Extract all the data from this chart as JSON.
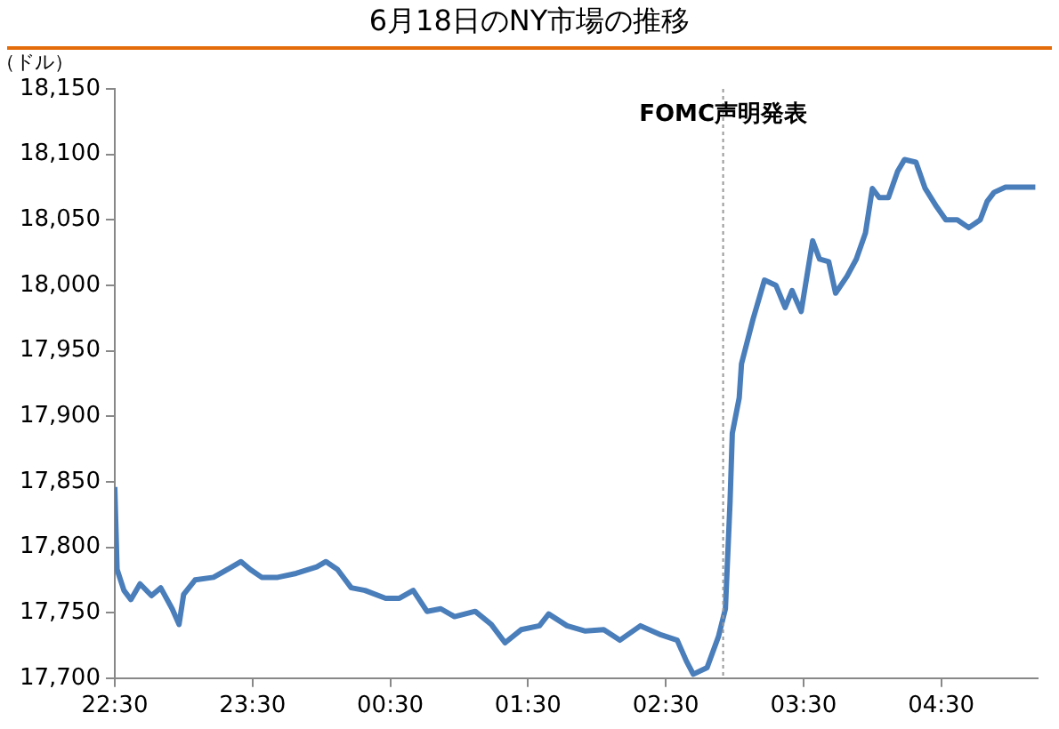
{
  "chart_data": {
    "type": "line",
    "title": "6月18日のNY市場の推移",
    "ylabel": "（ドル）",
    "x": [
      "--06-17T22:30",
      "--06-17T22:31",
      "--06-17T22:34",
      "--06-17T22:37",
      "--06-17T22:41",
      "--06-17T22:46",
      "--06-17T22:50",
      "--06-17T22:55",
      "--06-17T22:58",
      "--06-17T23:00",
      "--06-17T23:05",
      "--06-17T23:13",
      "--06-17T23:19",
      "--06-17T23:25",
      "--06-17T23:29",
      "--06-17T23:34",
      "--06-17T23:41",
      "--06-17T23:49",
      "--06-17T23:58",
      "--06-18T00:02",
      "--06-18T00:07",
      "--06-18T00:13",
      "--06-18T00:19",
      "--06-18T00:28",
      "--06-18T00:34",
      "--06-18T00:40",
      "--06-18T00:46",
      "--06-18T00:52",
      "--06-18T00:58",
      "--06-18T01:07",
      "--06-18T01:14",
      "--06-18T01:20",
      "--06-18T01:27",
      "--06-18T01:35",
      "--06-18T01:39",
      "--06-18T01:47",
      "--06-18T01:55",
      "--06-18T02:03",
      "--06-18T02:10",
      "--06-18T02:19",
      "--06-18T02:28",
      "--06-18T02:35",
      "--06-18T02:39",
      "--06-18T02:42",
      "--06-18T02:48",
      "--06-18T02:53",
      "--06-18T02:56",
      "--06-18T02:58",
      "--06-18T02:59",
      "--06-18T03:02",
      "--06-18T03:03",
      "--06-18T03:08",
      "--06-18T03:13",
      "--06-18T03:18",
      "--06-18T03:22",
      "--06-18T03:25",
      "--06-18T03:29",
      "--06-18T03:34",
      "--06-18T03:37",
      "--06-18T03:41",
      "--06-18T03:44",
      "--06-18T03:49",
      "--06-18T03:53",
      "--06-18T03:57",
      "--06-18T04:00",
      "--06-18T04:03",
      "--06-18T04:07",
      "--06-18T04:11",
      "--06-18T04:14",
      "--06-18T04:19",
      "--06-18T04:23",
      "--06-18T04:28",
      "--06-18T04:32",
      "--06-18T04:37",
      "--06-18T04:42",
      "--06-18T04:47",
      "--06-18T04:50",
      "--06-18T04:53",
      "--06-18T04:58",
      "--06-18T05:11"
    ],
    "series": [
      {
        "color": "#4a7ebb",
        "values": [
          17846,
          17783,
          17767,
          17760,
          17772,
          17763,
          17769,
          17753,
          17741,
          17764,
          17775,
          17777,
          17783,
          17789,
          17783,
          17777,
          17777,
          17780,
          17785,
          17789,
          17783,
          17769,
          17767,
          17761,
          17761,
          17767,
          17751,
          17753,
          17747,
          17751,
          17741,
          17727,
          17737,
          17740,
          17749,
          17740,
          17736,
          17737,
          17729,
          17740,
          17733,
          17729,
          17713,
          17703,
          17708,
          17732,
          17753,
          17834,
          17887,
          17914,
          17940,
          17974,
          18004,
          18000,
          17983,
          17996,
          17980,
          18034,
          18020,
          18018,
          17994,
          18007,
          18020,
          18040,
          18074,
          18067,
          18067,
          18087,
          18096,
          18094,
          18074,
          18060,
          18050,
          18050,
          18044,
          18050,
          18064,
          18071,
          18075,
          18075
        ]
      }
    ],
    "xlim": [
      "--06-17T22:30",
      "--06-18T05:12"
    ],
    "xticks": [
      {
        "value": "--06-17T22:30",
        "label": "22:30"
      },
      {
        "value": "--06-17T23:30",
        "label": "23:30"
      },
      {
        "value": "--06-18T00:30",
        "label": "00:30"
      },
      {
        "value": "--06-18T01:30",
        "label": "01:30"
      },
      {
        "value": "--06-18T02:30",
        "label": "02:30"
      },
      {
        "value": "--06-18T03:30",
        "label": "03:30"
      },
      {
        "value": "--06-18T04:30",
        "label": "04:30"
      }
    ],
    "ylim": [
      17700,
      18150
    ],
    "yticks": [
      {
        "value": 17700,
        "label": "17,700"
      },
      {
        "value": 17750,
        "label": "17,750"
      },
      {
        "value": 17800,
        "label": "17,800"
      },
      {
        "value": 17850,
        "label": "17,850"
      },
      {
        "value": 17900,
        "label": "17,900"
      },
      {
        "value": 17950,
        "label": "17,950"
      },
      {
        "value": 18000,
        "label": "18,000"
      },
      {
        "value": 18050,
        "label": "18,050"
      },
      {
        "value": 18100,
        "label": "18,100"
      },
      {
        "value": 18150,
        "label": "18,150"
      }
    ],
    "ref_lines": [
      {
        "axis": "x",
        "value": "--06-18T02:55",
        "label": "FOMC声明発表",
        "color": "#999999",
        "line_style": "dotted"
      }
    ],
    "grid": false,
    "legend": false,
    "marker": "none",
    "line_style": "solid"
  }
}
